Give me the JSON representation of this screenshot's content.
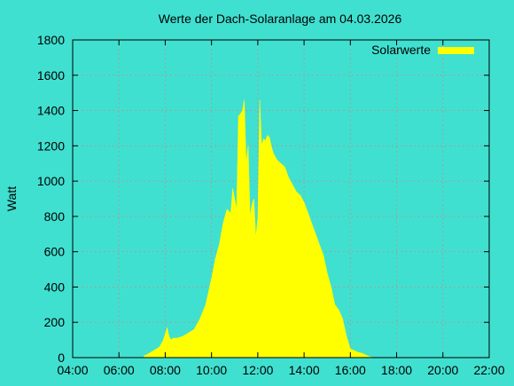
{
  "chart_data": {
    "type": "area",
    "title": "Werte der Dach-Solaranlage am 04.03.2026",
    "xlabel": "",
    "ylabel": "Watt",
    "legend": {
      "label": "Solarwerte",
      "position": "top-right"
    },
    "series_color": "#ffff00",
    "background_color": "#40e0d0",
    "grid": true,
    "xlim": [
      "04:00",
      "22:00"
    ],
    "ylim": [
      0,
      1800
    ],
    "x_ticks": [
      "04:00",
      "06:00",
      "08:00",
      "10:00",
      "12:00",
      "14:00",
      "16:00",
      "18:00",
      "20:00",
      "22:00"
    ],
    "y_ticks": [
      "0",
      "200",
      "400",
      "600",
      "800",
      "1000",
      "1200",
      "1400",
      "1600",
      "1800"
    ],
    "series": [
      {
        "name": "Solarwerte",
        "x": [
          "07:05",
          "07:15",
          "07:30",
          "07:45",
          "07:55",
          "08:05",
          "08:10",
          "08:15",
          "08:20",
          "08:30",
          "08:45",
          "09:00",
          "09:15",
          "09:30",
          "09:45",
          "10:00",
          "10:10",
          "10:20",
          "10:30",
          "10:40",
          "10:50",
          "10:55",
          "11:00",
          "11:05",
          "11:10",
          "11:15",
          "11:20",
          "11:25",
          "11:30",
          "11:35",
          "11:40",
          "11:45",
          "11:50",
          "11:55",
          "12:00",
          "12:05",
          "12:10",
          "12:15",
          "12:20",
          "12:25",
          "12:30",
          "12:35",
          "12:40",
          "12:50",
          "13:00",
          "13:10",
          "13:20",
          "13:30",
          "13:40",
          "13:50",
          "14:00",
          "14:10",
          "14:20",
          "14:30",
          "14:40",
          "14:50",
          "15:00",
          "15:10",
          "15:20",
          "15:30",
          "15:40",
          "15:50",
          "16:00",
          "16:10",
          "16:20",
          "16:30",
          "16:40",
          "16:45",
          "16:50",
          "17:00",
          "17:10",
          "17:20",
          "17:30",
          "17:40",
          "17:45"
        ],
        "values": [
          10,
          20,
          40,
          60,
          100,
          170,
          120,
          100,
          110,
          110,
          120,
          140,
          160,
          220,
          300,
          450,
          560,
          640,
          760,
          840,
          820,
          960,
          900,
          840,
          1370,
          1380,
          1400,
          1460,
          1100,
          1200,
          800,
          870,
          900,
          680,
          790,
          1460,
          1200,
          1240,
          1230,
          1260,
          1250,
          1200,
          1160,
          1120,
          1100,
          1080,
          1020,
          980,
          940,
          920,
          880,
          820,
          760,
          700,
          640,
          580,
          480,
          400,
          300,
          270,
          220,
          120,
          50,
          40,
          30,
          25,
          15,
          10,
          5,
          0,
          0,
          0,
          0,
          0,
          0
        ]
      }
    ]
  }
}
